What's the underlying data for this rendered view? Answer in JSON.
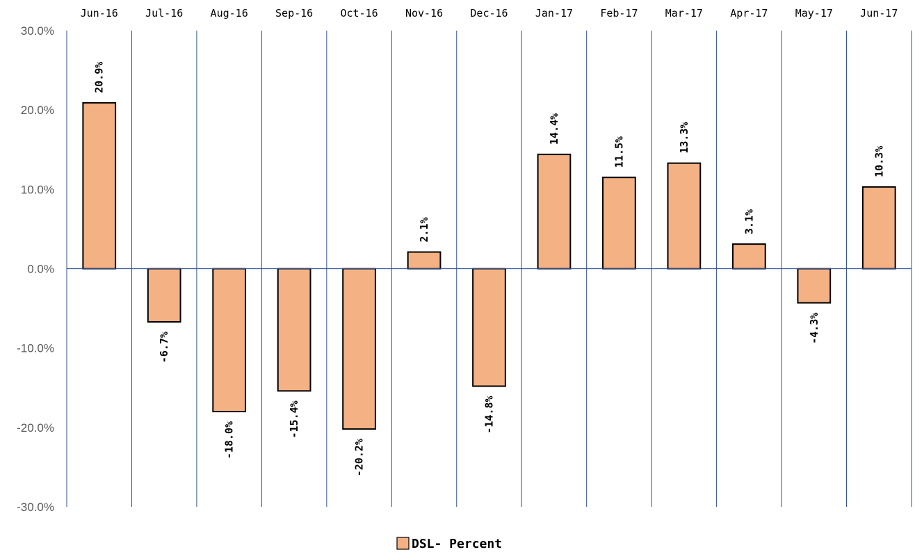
{
  "chart_data": {
    "type": "bar",
    "categories": [
      "Jun-16",
      "Jul-16",
      "Aug-16",
      "Sep-16",
      "Oct-16",
      "Nov-16",
      "Dec-16",
      "Jan-17",
      "Feb-17",
      "Mar-17",
      "Apr-17",
      "May-17",
      "Jun-17"
    ],
    "series": [
      {
        "name": "DSL- Percent",
        "values": [
          20.9,
          -6.7,
          -18.0,
          -15.4,
          -20.2,
          2.1,
          -14.8,
          14.4,
          11.5,
          13.3,
          3.1,
          -4.3,
          10.3
        ],
        "labels": [
          "20.9%",
          "-6.7%",
          "-18.0%",
          "-15.4%",
          "-20.2%",
          "2.1%",
          "-14.8%",
          "14.4%",
          "11.5%",
          "13.3%",
          "3.1%",
          "-4.3%",
          "10.3%"
        ],
        "color": "#F4B183",
        "border_color": "#000000"
      }
    ],
    "ylim": [
      -30,
      30
    ],
    "yticks": [
      "30.0%",
      "20.0%",
      "10.0%",
      "0.0%",
      "-10.0%",
      "-20.0%",
      "-30.0%"
    ],
    "x_axis_position": "top",
    "gridlines": "vertical",
    "gridline_color": "#2F4F8F",
    "legend": {
      "position": "bottom",
      "label": "DSL- Percent"
    }
  }
}
